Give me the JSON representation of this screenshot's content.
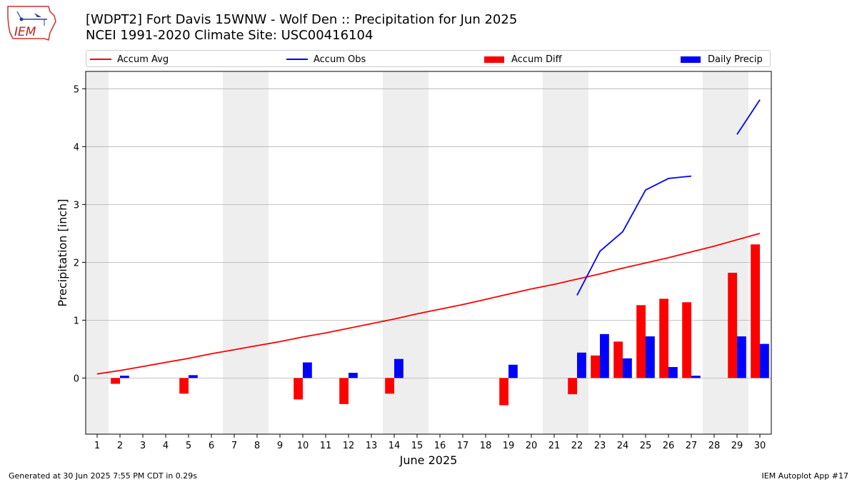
{
  "logo": {
    "text": "IEM"
  },
  "header": {
    "title": "[WDPT2] Fort Davis 15WNW - Wolf Den :: Precipitation for Jun 2025",
    "subtitle": "NCEI 1991-2020 Climate Site: USC00416104"
  },
  "footer": {
    "left": "Generated at 30 Jun 2025 7:55 PM CDT in 0.29s",
    "right": "IEM Autoplot App #17"
  },
  "colors": {
    "avg": "#ff0000",
    "obs": "#0000ff",
    "diff": "#ff0000",
    "daily": "#0000ff",
    "weekend": "#eeeeee",
    "grid": "#b0b0b0"
  },
  "chart_data": {
    "type": "bar",
    "xlabel": "June 2025",
    "ylabel": "Precipitation [inch]",
    "ylim": [
      -0.97,
      5.3
    ],
    "yticks": [
      0,
      1,
      2,
      3,
      4,
      5
    ],
    "days": [
      1,
      2,
      3,
      4,
      5,
      6,
      7,
      8,
      9,
      10,
      11,
      12,
      13,
      14,
      15,
      16,
      17,
      18,
      19,
      20,
      21,
      22,
      23,
      24,
      25,
      26,
      27,
      28,
      29,
      30
    ],
    "weekend_days": [
      1,
      7,
      8,
      14,
      15,
      21,
      22,
      28,
      29
    ],
    "grid": "horizontal",
    "legend_position": "top",
    "series": [
      {
        "name": "Accum Avg",
        "kind": "line",
        "values": [
          0.07,
          0.13,
          0.2,
          0.27,
          0.34,
          0.42,
          0.49,
          0.56,
          0.63,
          0.71,
          0.78,
          0.86,
          0.94,
          1.02,
          1.11,
          1.19,
          1.27,
          1.36,
          1.45,
          1.54,
          1.62,
          1.71,
          1.8,
          1.9,
          1.99,
          2.08,
          2.18,
          2.28,
          2.39,
          2.5
        ]
      },
      {
        "name": "Accum Obs",
        "kind": "line",
        "values": [
          null,
          null,
          null,
          null,
          null,
          null,
          null,
          null,
          null,
          null,
          null,
          null,
          null,
          null,
          null,
          null,
          null,
          null,
          null,
          null,
          null,
          1.43,
          2.19,
          2.53,
          3.25,
          3.45,
          3.49,
          null,
          4.21,
          4.81
        ]
      },
      {
        "name": "Accum Diff",
        "kind": "bar",
        "values": [
          null,
          -0.1,
          null,
          null,
          -0.27,
          null,
          null,
          null,
          null,
          -0.37,
          null,
          -0.45,
          null,
          -0.27,
          null,
          null,
          null,
          null,
          -0.47,
          null,
          null,
          -0.28,
          0.39,
          0.63,
          1.26,
          1.37,
          1.31,
          null,
          1.82,
          2.31
        ]
      },
      {
        "name": "Daily Precip",
        "kind": "bar",
        "values": [
          null,
          0.04,
          null,
          null,
          0.05,
          null,
          null,
          null,
          null,
          0.27,
          null,
          0.09,
          null,
          0.33,
          null,
          null,
          null,
          null,
          0.23,
          null,
          null,
          0.44,
          0.76,
          0.34,
          0.72,
          0.19,
          0.04,
          null,
          0.72,
          0.59
        ]
      }
    ]
  }
}
